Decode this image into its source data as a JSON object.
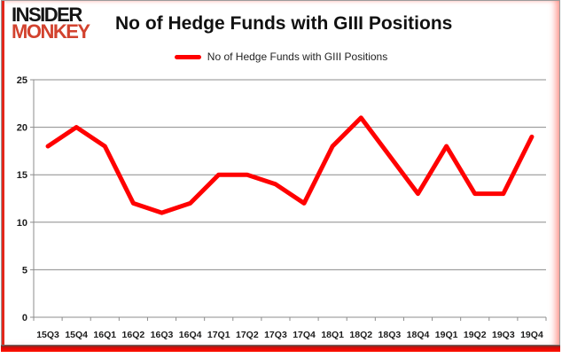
{
  "header": {
    "logo_line1": "INSIDER",
    "logo_line2": "MONKEY",
    "title": "No of Hedge Funds with GIII Positions"
  },
  "legend": {
    "label": "No of Hedge Funds with GIII Positions"
  },
  "colors": {
    "line_red": "#ff0000",
    "logo_red": "#d2422e",
    "frame_red": "#e2281c",
    "gridline_gray": "#8c8c8c",
    "tick_text": "#1c1c1c"
  },
  "chart_data": {
    "type": "line",
    "title": "No of Hedge Funds with GIII Positions",
    "series_name": "No of Hedge Funds with GIII Positions",
    "categories": [
      "15Q3",
      "15Q4",
      "16Q1",
      "16Q2",
      "16Q3",
      "16Q4",
      "17Q1",
      "17Q2",
      "17Q3",
      "17Q4",
      "18Q1",
      "18Q2",
      "18Q3",
      "18Q4",
      "19Q1",
      "19Q2",
      "19Q3",
      "19Q4"
    ],
    "values": [
      18,
      20,
      18,
      12,
      11,
      12,
      15,
      15,
      14,
      12,
      18,
      21,
      17,
      13,
      18,
      13,
      13,
      19
    ],
    "ylim": [
      0,
      25
    ],
    "yticks": [
      0,
      5,
      10,
      15,
      20,
      25
    ],
    "xlabel": "",
    "ylabel": "",
    "grid": true,
    "legend_position": "top",
    "line_color": "#ff0000"
  }
}
